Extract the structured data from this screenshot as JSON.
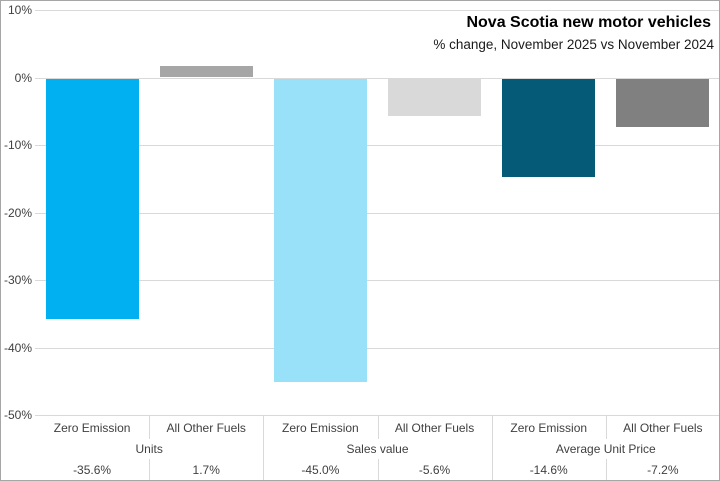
{
  "title": "Nova Scotia new motor vehicles",
  "subtitle": "% change, November 2025 vs November 2024",
  "chart_data": {
    "type": "bar",
    "title": "Nova Scotia new motor vehicles",
    "subtitle": "% change, November 2025 vs November 2024",
    "xlabel": "",
    "ylabel": "% change",
    "ylim": [
      -50,
      10
    ],
    "ytick_step": 10,
    "ytick_labels": [
      "10%",
      "0%",
      "-10%",
      "-20%",
      "-30%",
      "-40%",
      "-50%"
    ],
    "grid": true,
    "legend_position": "none",
    "groups": [
      {
        "label": "Units",
        "bars": [
          {
            "category": "Zero Emission",
            "value": -35.6,
            "display": "-35.6%",
            "color": "#00b0f0"
          },
          {
            "category": "All Other Fuels",
            "value": 1.7,
            "display": "1.7%",
            "color": "#a6a6a6"
          }
        ]
      },
      {
        "label": "Sales value",
        "bars": [
          {
            "category": "Zero Emission",
            "value": -45.0,
            "display": "-45.0%",
            "color": "#99e0f9"
          },
          {
            "category": "All Other Fuels",
            "value": -5.6,
            "display": "-5.6%",
            "color": "#d9d9d9"
          }
        ]
      },
      {
        "label": "Average Unit Price",
        "bars": [
          {
            "category": "Zero Emission",
            "value": -14.6,
            "display": "-14.6%",
            "color": "#055a78"
          },
          {
            "category": "All Other Fuels",
            "value": -7.2,
            "display": "-7.2%",
            "color": "#808080"
          }
        ]
      }
    ],
    "colors": {
      "gridline": "#d9d9d9",
      "axis_text": "#404040",
      "title_text": "#000000"
    }
  }
}
